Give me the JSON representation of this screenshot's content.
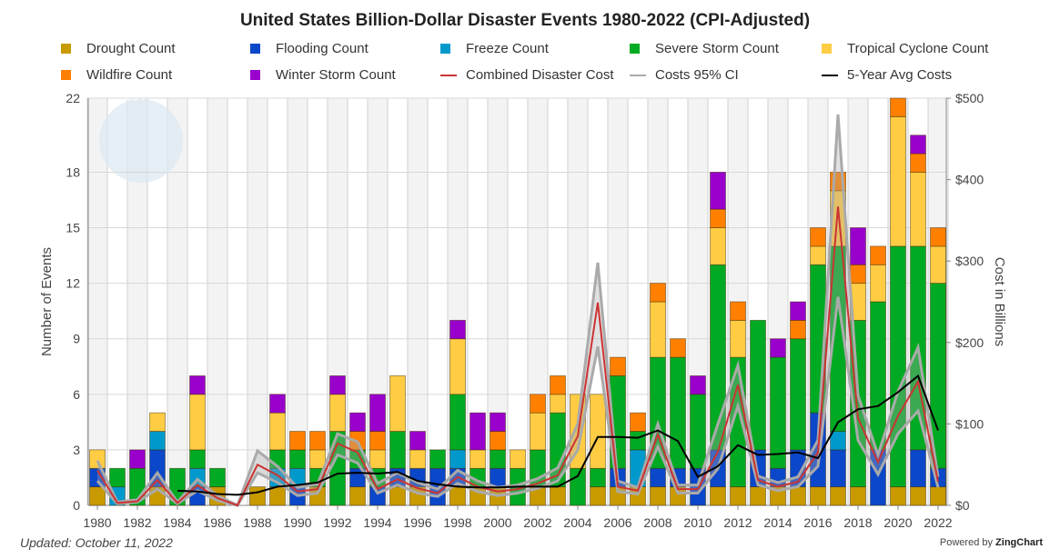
{
  "chart_data": {
    "type": "bar",
    "stacked": true,
    "title": "United States Billion-Dollar Disaster Events 1980-2022 (CPI-Adjusted)",
    "ylabel": "Number of Events",
    "y2label": "Cost in Billions",
    "ylim": [
      0,
      22
    ],
    "y_ticks": [
      "0",
      "3",
      "6",
      "9",
      "12",
      "15",
      "18",
      "22"
    ],
    "y2lim": [
      0,
      500
    ],
    "y2_ticks": [
      "$0",
      "$100",
      "$200",
      "$300",
      "$400",
      "$500"
    ],
    "grid": true,
    "legend_position": "top",
    "x": [
      1980,
      1981,
      1982,
      1983,
      1984,
      1985,
      1986,
      1987,
      1988,
      1989,
      1990,
      1991,
      1992,
      1993,
      1994,
      1995,
      1996,
      1997,
      1998,
      1999,
      2000,
      2001,
      2002,
      2003,
      2004,
      2005,
      2006,
      2007,
      2008,
      2009,
      2010,
      2011,
      2012,
      2013,
      2014,
      2015,
      2016,
      2017,
      2018,
      2019,
      2020,
      2021,
      2022
    ],
    "x_tick_labels": [
      "1980",
      "1982",
      "1984",
      "1986",
      "1988",
      "1990",
      "1992",
      "1994",
      "1996",
      "1998",
      "2000",
      "2002",
      "2004",
      "2006",
      "2008",
      "2010",
      "2012",
      "2014",
      "2016",
      "2018",
      "2020",
      "2022"
    ],
    "series": [
      {
        "name": "Drought Count",
        "color": "#c99a00",
        "values": [
          1,
          0,
          0,
          1,
          0,
          0,
          1,
          0,
          1,
          1,
          0,
          1,
          0,
          1,
          0,
          1,
          1,
          0,
          1,
          1,
          1,
          0,
          1,
          1,
          0,
          1,
          1,
          1,
          1,
          1,
          0,
          1,
          1,
          1,
          1,
          1,
          1,
          1,
          1,
          0,
          1,
          1,
          1
        ]
      },
      {
        "name": "Flooding Count",
        "color": "#0b47c9",
        "values": [
          1,
          0,
          0,
          2,
          0,
          1,
          0,
          0,
          0,
          0,
          1,
          0,
          0,
          1,
          1,
          1,
          1,
          2,
          1,
          0,
          1,
          0,
          0,
          0,
          0,
          0,
          1,
          0,
          1,
          1,
          2,
          2,
          0,
          2,
          1,
          2,
          4,
          2,
          0,
          3,
          0,
          2,
          1
        ]
      },
      {
        "name": "Freeze Count",
        "color": "#0099cc",
        "values": [
          0,
          1,
          0,
          1,
          0,
          1,
          0,
          0,
          0,
          1,
          1,
          0,
          0,
          0,
          0,
          0,
          0,
          0,
          1,
          0,
          0,
          0,
          0,
          0,
          0,
          0,
          0,
          2,
          0,
          0,
          0,
          0,
          0,
          0,
          0,
          0,
          0,
          1,
          0,
          0,
          0,
          0,
          0
        ]
      },
      {
        "name": "Severe Storm Count",
        "color": "#00aa22",
        "values": [
          0,
          1,
          2,
          0,
          2,
          1,
          1,
          0,
          0,
          1,
          1,
          1,
          4,
          1,
          1,
          2,
          0,
          1,
          3,
          1,
          1,
          2,
          2,
          4,
          2,
          1,
          5,
          1,
          6,
          6,
          4,
          10,
          7,
          7,
          6,
          6,
          8,
          10,
          9,
          8,
          13,
          11,
          10
        ]
      },
      {
        "name": "Tropical Cyclone Count",
        "color": "#ffcc44",
        "values": [
          1,
          0,
          0,
          1,
          0,
          3,
          0,
          0,
          0,
          2,
          0,
          1,
          2,
          0,
          1,
          3,
          1,
          0,
          3,
          1,
          0,
          1,
          2,
          1,
          4,
          4,
          0,
          0,
          3,
          0,
          0,
          2,
          2,
          0,
          0,
          0,
          1,
          3,
          2,
          2,
          7,
          4,
          2
        ]
      },
      {
        "name": "Wildfire Count",
        "color": "#ff8000",
        "values": [
          0,
          0,
          0,
          0,
          0,
          0,
          0,
          0,
          0,
          0,
          1,
          1,
          0,
          1,
          1,
          0,
          0,
          0,
          0,
          0,
          1,
          0,
          1,
          1,
          0,
          0,
          1,
          1,
          1,
          1,
          0,
          1,
          1,
          0,
          0,
          1,
          1,
          1,
          1,
          1,
          1,
          1,
          1
        ]
      },
      {
        "name": "Winter Storm Count",
        "color": "#9900cc",
        "values": [
          0,
          0,
          1,
          0,
          0,
          1,
          0,
          0,
          0,
          1,
          0,
          0,
          1,
          1,
          2,
          0,
          1,
          0,
          1,
          2,
          1,
          0,
          0,
          0,
          0,
          0,
          0,
          0,
          0,
          0,
          1,
          2,
          0,
          0,
          1,
          1,
          0,
          0,
          2,
          0,
          0,
          1,
          0
        ]
      }
    ],
    "lines": [
      {
        "name": "Combined Disaster Cost",
        "color": "#cc3333",
        "axis": "right",
        "values": [
          43,
          3,
          5,
          31,
          3,
          25,
          9,
          0,
          50,
          37,
          17,
          20,
          76,
          65,
          20,
          32,
          21,
          15,
          35,
          23,
          17,
          20,
          27,
          37,
          85,
          249,
          23,
          18,
          87,
          20,
          20,
          66,
          148,
          31,
          23,
          29,
          65,
          367,
          107,
          53,
          110,
          152,
          29
        ]
      },
      {
        "name": "Costs 95% CI",
        "color": "#aaaaaa",
        "axis": "right",
        "low": [
          30,
          2,
          4,
          20,
          2,
          18,
          6,
          0,
          40,
          28,
          12,
          15,
          62,
          52,
          15,
          25,
          15,
          11,
          27,
          17,
          12,
          15,
          21,
          30,
          68,
          195,
          17,
          14,
          72,
          15,
          15,
          45,
          122,
          25,
          18,
          23,
          48,
          256,
          80,
          38,
          88,
          116,
          22
        ],
        "high": [
          55,
          4,
          7,
          40,
          4,
          32,
          12,
          0,
          67,
          48,
          22,
          26,
          88,
          78,
          27,
          40,
          28,
          20,
          43,
          30,
          22,
          25,
          33,
          46,
          100,
          298,
          30,
          22,
          100,
          25,
          25,
          100,
          172,
          36,
          28,
          35,
          80,
          480,
          135,
          62,
          140,
          194,
          35
        ]
      },
      {
        "name": "5-Year Avg Costs",
        "color": "#000000",
        "axis": "right",
        "values": [
          null,
          null,
          null,
          null,
          18,
          17,
          14,
          13,
          16,
          23,
          25,
          28,
          39,
          40,
          39,
          41,
          30,
          26,
          23,
          22,
          22,
          23,
          23,
          23,
          36,
          84,
          84,
          83,
          92,
          79,
          35,
          48,
          74,
          62,
          63,
          65,
          58,
          102,
          118,
          122,
          139,
          159,
          92
        ]
      }
    ]
  },
  "watermark": "NOAA",
  "footer": {
    "updated": "Updated: October 11, 2022",
    "powered_prefix": "Powered by ",
    "powered_brand": "ZingChart"
  }
}
